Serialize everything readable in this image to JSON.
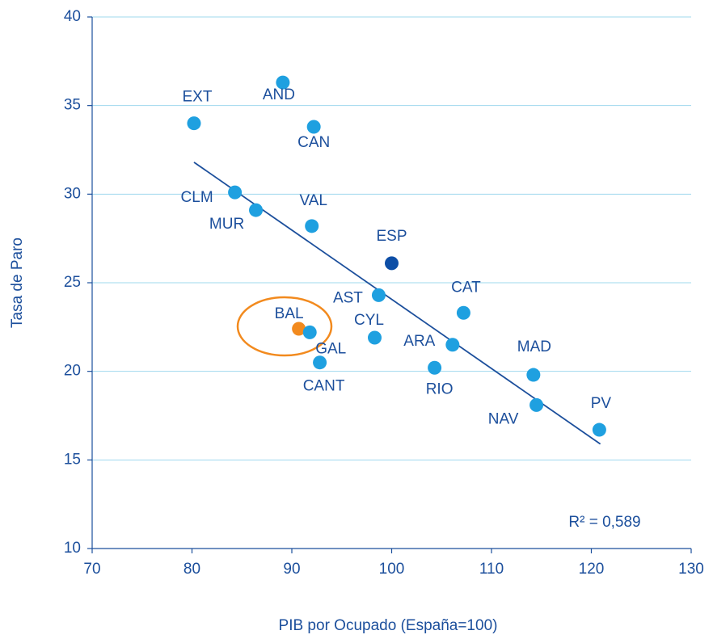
{
  "chart_data": {
    "type": "scatter",
    "xlabel": "PIB por Ocupado  (España=100)",
    "ylabel": "Tasa de Paro",
    "labels": [
      "EXT",
      "AND",
      "CAN",
      "CLM",
      "MUR",
      "VAL",
      "ESP",
      "AST",
      "CAT",
      "BAL",
      "GAL",
      "CYL",
      "ARA",
      "CANT",
      "RIO",
      "MAD",
      "NAV",
      "PV"
    ],
    "x": [
      80.2,
      89.1,
      92.2,
      84.3,
      86.4,
      92.0,
      100.0,
      98.7,
      107.2,
      90.7,
      91.8,
      98.3,
      106.1,
      92.8,
      104.3,
      114.2,
      114.5,
      120.8
    ],
    "values": [
      34.0,
      36.3,
      33.8,
      30.1,
      29.1,
      28.2,
      26.1,
      24.3,
      23.3,
      22.4,
      22.2,
      21.9,
      21.5,
      20.5,
      20.2,
      19.8,
      18.1,
      16.7
    ],
    "colors": [
      "#1fa0e0",
      "#1fa0e0",
      "#1fa0e0",
      "#1fa0e0",
      "#1fa0e0",
      "#1fa0e0",
      "#0d4ea6",
      "#1fa0e0",
      "#1fa0e0",
      "#f28a1e",
      "#1fa0e0",
      "#1fa0e0",
      "#1fa0e0",
      "#1fa0e0",
      "#1fa0e0",
      "#1fa0e0",
      "#1fa0e0",
      "#1fa0e0"
    ],
    "trendline": {
      "x": [
        80.2,
        120.9
      ],
      "y": [
        31.8,
        15.9
      ],
      "color": "#1c4f9c",
      "label": "R² = 0,589"
    },
    "xlim": [
      70,
      130
    ],
    "xticks": [
      70,
      80,
      90,
      100,
      110,
      120,
      130
    ],
    "ylim": [
      10,
      40
    ],
    "yticks": [
      10,
      15,
      20,
      25,
      30,
      35,
      40
    ],
    "grid": true
  }
}
